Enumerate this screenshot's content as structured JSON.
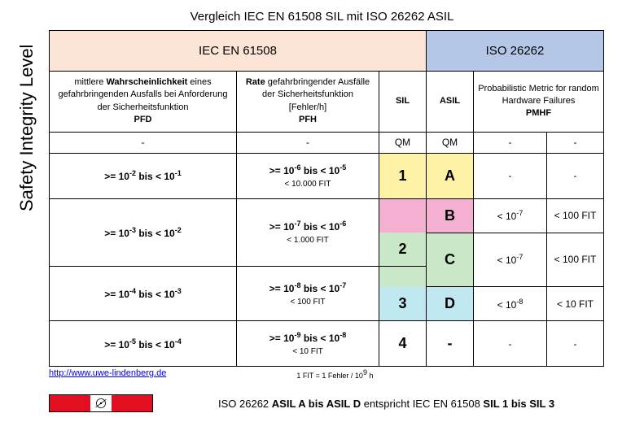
{
  "title": "Vergleich IEC EN 61508 SIL  mit ISO 26262 ASIL",
  "ylabel": "Safety Integrity Level",
  "hdr": {
    "iec": "IEC EN 61508",
    "iso": "ISO 26262"
  },
  "sub": {
    "pfd_top": "mittlere <b>Wahrscheinlichkeit</b> eines gefahrbringenden Ausfalls bei Anforderung der Sicherheitsfunktion",
    "pfd": "PFD",
    "pfh_top": "<b>Rate</b> gefahrbringender Ausfälle der Sicherheitsfunktion<br>[Fehler/h]",
    "pfh": "PFH",
    "sil": "SIL",
    "asil": "ASIL",
    "pmhf_top": "Probabilistic Metric for random Hardware Failures",
    "pmhf": "PMHF"
  },
  "rows": {
    "r0": {
      "pfd": "-",
      "pfh": "-",
      "sil": "QM",
      "asil": "QM",
      "pm1": "-",
      "pm2": "-"
    },
    "r1": {
      "pfd": ">= 10<sup>-2</sup>  bis  < 10<sup>-1</sup>",
      "pfh": ">= 10<sup>-6</sup>  bis  < 10<sup>-5</sup>",
      "fit": "< 10.000 FIT",
      "sil": "1",
      "asil": "A",
      "pm1": "-",
      "pm2": "-"
    },
    "r2": {
      "pfd": ">= 10<sup>-3</sup>  bis  < 10<sup>-2</sup>",
      "pfh": ">= 10<sup>-7</sup>  bis  < 10<sup>-6</sup>",
      "fit": "< 1.000 FIT",
      "sil": "2",
      "asilB": "B",
      "asilC": "C",
      "pm1B": "< 10<sup>-7</sup>",
      "pm2B": "< 100 FIT",
      "pm1C": "< 10<sup>-7</sup>",
      "pm2C": "< 100 FIT"
    },
    "r3": {
      "pfd": ">= 10<sup>-4</sup>  bis  < 10<sup>-3</sup>",
      "pfh": ">= 10<sup>-8</sup>  bis  < 10<sup>-7</sup>",
      "fit": "< 100 FIT",
      "sil": "3",
      "asilD": "D",
      "pm1D": "< 10<sup>-8</sup>",
      "pm2D": "< 10 FIT"
    },
    "r4": {
      "pfd": ">= 10<sup>-5</sup>  bis  < 10<sup>-4</sup>",
      "pfh": ">= 10<sup>-9</sup>  bis  < 10<sup>-8</sup>",
      "fit": "< 10 FIT",
      "sil": "4",
      "asil": "-",
      "pm1": "-",
      "pm2": "-"
    }
  },
  "link": "http://www.uwe-lindenberg.de",
  "fitnote": "1 FIT = 1 Fehler / 10<sup>9</sup> h",
  "footer": "ISO 26262  <b>ASIL A bis ASIL D</b> entspricht IEC EN 61508  <b>SIL 1 bis  SIL 3</b>",
  "colors": {
    "iec_hdr": "#fce4d6",
    "iso_hdr": "#b4c7e7",
    "yellow": "#fff2a6",
    "pink": "#f4b0d0",
    "lgreen": "#c8e8c8",
    "lblue": "#c0e8f0",
    "logo_red": "#e01020"
  }
}
